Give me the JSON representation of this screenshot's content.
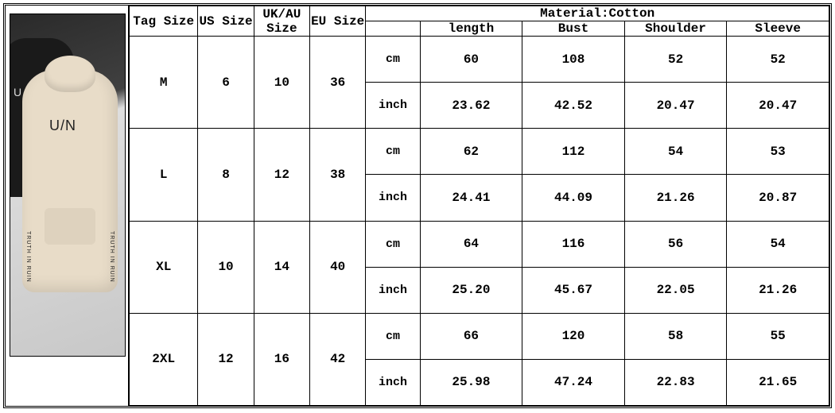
{
  "product": {
    "front_text": "U/N",
    "back_text": "U",
    "sleeve_text": "TRUTH IN RUIN"
  },
  "headers": {
    "tag": "Tag Size",
    "us": "US Size",
    "ukau": "UK/AU Size",
    "eu": "EU Size",
    "material": "Material:Cotton",
    "length": "length",
    "bust": "Bust",
    "shoulder": "Shoulder",
    "sleeve": "Sleeve"
  },
  "units": {
    "cm": "cm",
    "inch": "inch"
  },
  "rows": [
    {
      "tag": "M",
      "us": "6",
      "ukau": "10",
      "eu": "36",
      "cm": {
        "length": "60",
        "bust": "108",
        "shoulder": "52",
        "sleeve": "52"
      },
      "inch": {
        "length": "23.62",
        "bust": "42.52",
        "shoulder": "20.47",
        "sleeve": "20.47"
      }
    },
    {
      "tag": "L",
      "us": "8",
      "ukau": "12",
      "eu": "38",
      "cm": {
        "length": "62",
        "bust": "112",
        "shoulder": "54",
        "sleeve": "53"
      },
      "inch": {
        "length": "24.41",
        "bust": "44.09",
        "shoulder": "21.26",
        "sleeve": "20.87"
      }
    },
    {
      "tag": "XL",
      "us": "10",
      "ukau": "14",
      "eu": "40",
      "cm": {
        "length": "64",
        "bust": "116",
        "shoulder": "56",
        "sleeve": "54"
      },
      "inch": {
        "length": "25.20",
        "bust": "45.67",
        "shoulder": "22.05",
        "sleeve": "21.26"
      }
    },
    {
      "tag": "2XL",
      "us": "12",
      "ukau": "16",
      "eu": "42",
      "cm": {
        "length": "66",
        "bust": "120",
        "shoulder": "58",
        "sleeve": "55"
      },
      "inch": {
        "length": "25.98",
        "bust": "47.24",
        "shoulder": "22.83",
        "sleeve": "21.65"
      }
    }
  ],
  "style": {
    "border_color": "#000000",
    "bg": "#ffffff",
    "font": "Courier New",
    "header_fontsize": 16,
    "cell_fontsize": 16,
    "hoodie_front_color": "#e8dcc8",
    "hoodie_back_color": "#1a1a1a"
  }
}
